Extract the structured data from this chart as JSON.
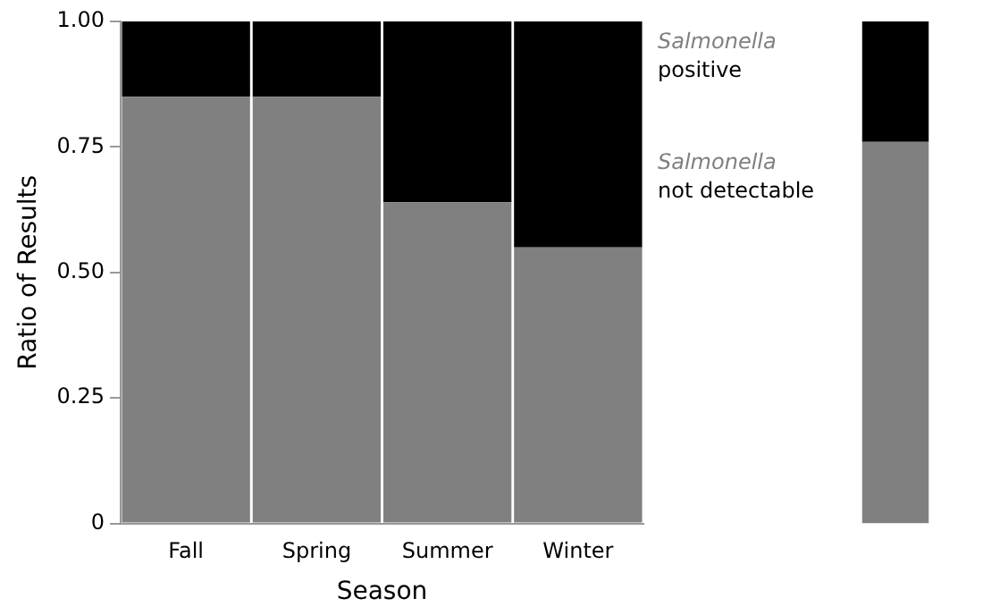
{
  "chart_data": [
    {
      "type": "bar",
      "stacked": true,
      "xlabel": "Season",
      "ylabel": "Ratio of Results",
      "categories": [
        "Fall",
        "Spring",
        "Summer",
        "Winter"
      ],
      "series": [
        {
          "name": "Salmonella not detectable",
          "color": "#808080",
          "values": [
            0.85,
            0.85,
            0.64,
            0.55
          ]
        },
        {
          "name": "Salmonella positive",
          "color": "#000000",
          "values": [
            0.15,
            0.15,
            0.36,
            0.45
          ]
        }
      ],
      "ylim": [
        0,
        1
      ],
      "yticks": [
        0,
        {
          "value": 0.25,
          "label": "0.25"
        },
        {
          "value": 0.5,
          "label": "0.50"
        },
        {
          "value": 0.75,
          "label": "0.75"
        },
        {
          "value": 1,
          "label": "1.00"
        }
      ],
      "grid": false
    },
    {
      "type": "bar",
      "stacked": true,
      "categories": [
        null
      ],
      "series": [
        {
          "color": "#808080",
          "values": [
            0.76
          ]
        },
        {
          "color": "#000000",
          "values": [
            0.24
          ]
        }
      ],
      "ylim": [
        0,
        1
      ],
      "tick_labels": false
    }
  ]
}
